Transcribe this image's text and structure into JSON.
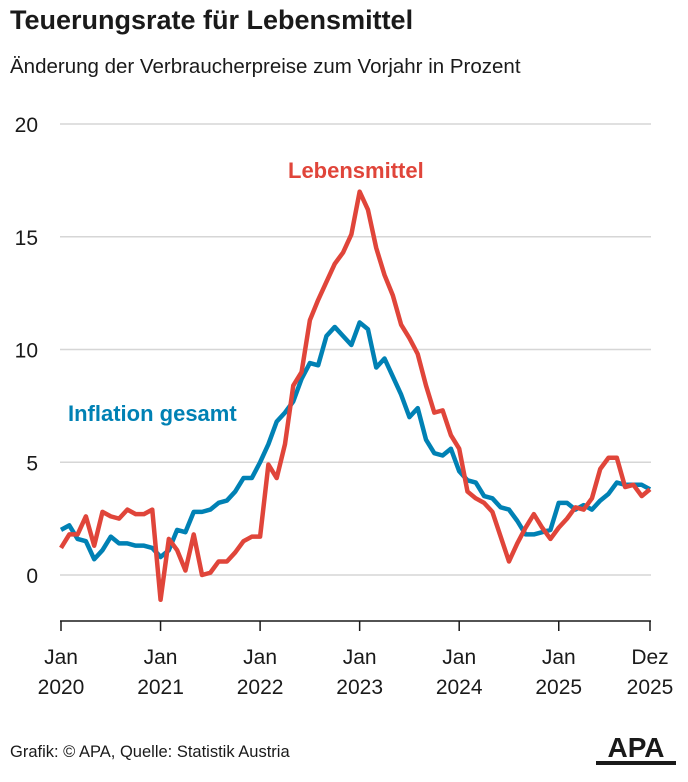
{
  "header": {
    "title": "Teuerungsrate für Lebensmittel",
    "subtitle": "Änderung der Verbraucherpreise zum Vorjahr in Prozent"
  },
  "footer": {
    "source": "Grafik: © APA, Quelle: Statistik Austria",
    "logo": "APA"
  },
  "chart_data": {
    "type": "line",
    "title": "Teuerungsrate für Lebensmittel",
    "ylabel": "Prozent",
    "xlabel": "",
    "ylim": [
      -2,
      20
    ],
    "yticks": [
      0,
      5,
      10,
      15,
      20
    ],
    "xticks": [
      {
        "month": 0,
        "line1": "Jan",
        "line2": "2020"
      },
      {
        "month": 12,
        "line1": "Jan",
        "line2": "2021"
      },
      {
        "month": 24,
        "line1": "Jan",
        "line2": "2022"
      },
      {
        "month": 36,
        "line1": "Jan",
        "line2": "2023"
      },
      {
        "month": 48,
        "line1": "Jan",
        "line2": "2024"
      },
      {
        "month": 60,
        "line1": "Jan",
        "line2": "2025"
      },
      {
        "month": 71,
        "line1": "Dez",
        "line2": "2025"
      }
    ],
    "x_start": "2020-01",
    "x_end": "2025-12",
    "grid": true,
    "series": [
      {
        "name": "Lebensmittel",
        "color": "#e0453a",
        "values": [
          1.2,
          1.8,
          1.8,
          2.6,
          1.3,
          2.8,
          2.6,
          2.5,
          2.9,
          2.7,
          2.7,
          2.9,
          -1.1,
          1.6,
          1.1,
          0.2,
          1.8,
          0.0,
          0.1,
          0.6,
          0.6,
          1.0,
          1.5,
          1.7,
          1.7,
          4.9,
          4.3,
          5.8,
          8.4,
          9.0,
          11.3,
          12.2,
          13.0,
          13.8,
          14.3,
          15.1,
          17.0,
          16.2,
          14.5,
          13.3,
          12.4,
          11.1,
          10.5,
          9.8,
          8.4,
          7.2,
          7.3,
          6.2,
          5.6,
          3.7,
          3.4,
          3.2,
          2.8,
          1.7,
          0.6,
          1.4,
          2.1,
          2.7,
          2.1,
          1.6,
          2.1,
          2.5,
          3.0,
          2.9,
          3.4,
          4.7,
          5.2,
          5.2,
          3.9,
          4.0,
          3.5,
          3.8
        ]
      },
      {
        "name": "Inflation gesamt",
        "color": "#0081b4",
        "values": [
          2.0,
          2.2,
          1.6,
          1.5,
          0.7,
          1.1,
          1.7,
          1.4,
          1.4,
          1.3,
          1.3,
          1.2,
          0.8,
          1.1,
          2.0,
          1.9,
          2.8,
          2.8,
          2.9,
          3.2,
          3.3,
          3.7,
          4.3,
          4.3,
          5.0,
          5.8,
          6.8,
          7.2,
          7.7,
          8.7,
          9.4,
          9.3,
          10.6,
          11.0,
          10.6,
          10.2,
          11.2,
          10.9,
          9.2,
          9.6,
          8.8,
          8.0,
          7.0,
          7.4,
          6.0,
          5.4,
          5.3,
          5.6,
          4.6,
          4.2,
          4.1,
          3.5,
          3.4,
          3.0,
          2.9,
          2.4,
          1.8,
          1.8,
          1.9,
          2.0,
          3.2,
          3.2,
          2.9,
          3.1,
          2.9,
          3.3,
          3.6,
          4.1,
          4.0,
          4.0,
          4.0,
          3.8
        ]
      }
    ]
  }
}
